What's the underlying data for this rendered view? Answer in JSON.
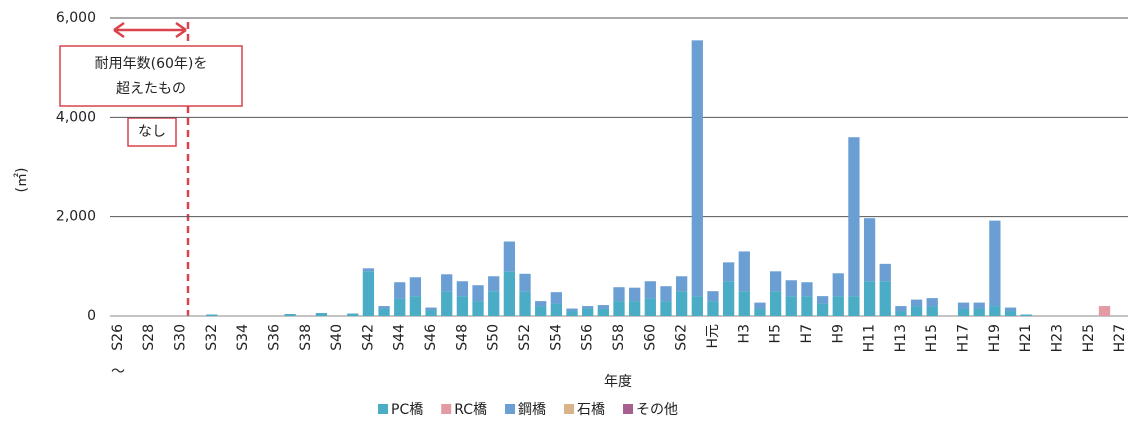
{
  "chart_data": {
    "type": "stacked_bar",
    "y_label": "(㎡)",
    "x_label": "年度",
    "x_note": "〜",
    "annotation": {
      "lines": [
        "耐用年数(60年)を",
        "超えたもの"
      ],
      "note": "なし"
    },
    "categories": [
      "S26",
      null,
      "S28",
      null,
      "S30",
      null,
      "S32",
      null,
      "S34",
      null,
      "S36",
      null,
      "S38",
      null,
      "S40",
      null,
      "S42",
      null,
      "S44",
      null,
      "S46",
      null,
      "S48",
      null,
      "S50",
      null,
      "S52",
      null,
      "S54",
      null,
      "S56",
      null,
      "S58",
      null,
      "S60",
      null,
      "S62",
      null,
      "H元",
      null,
      "H3",
      null,
      "H5",
      null,
      "H7",
      null,
      "H9",
      null,
      "H11",
      null,
      "H13",
      null,
      "H15",
      null,
      "H17",
      null,
      "H19",
      null,
      "H21",
      null,
      "H23",
      null,
      "H25",
      null,
      "H27"
    ],
    "series": [
      {
        "name": "PC橋",
        "color": "#4bacc6",
        "values": [
          0,
          0,
          0,
          0,
          0,
          0,
          30,
          0,
          0,
          0,
          0,
          40,
          0,
          60,
          0,
          50,
          900,
          150,
          350,
          400,
          120,
          500,
          400,
          300,
          500,
          900,
          500,
          200,
          250,
          100,
          150,
          150,
          300,
          300,
          350,
          300,
          500,
          400,
          300,
          700,
          500,
          150,
          500,
          400,
          400,
          250,
          400,
          400,
          700,
          700,
          100,
          200,
          200,
          0,
          150,
          150,
          200,
          100,
          30,
          0,
          0,
          0,
          0,
          0,
          0
        ]
      },
      {
        "name": "RC橋",
        "color": "#e39aa3",
        "values": [
          0,
          0,
          0,
          0,
          0,
          0,
          0,
          0,
          0,
          0,
          0,
          0,
          0,
          0,
          0,
          0,
          0,
          0,
          0,
          0,
          0,
          0,
          0,
          0,
          0,
          0,
          0,
          0,
          0,
          0,
          0,
          0,
          0,
          0,
          0,
          0,
          0,
          0,
          0,
          0,
          0,
          0,
          0,
          0,
          0,
          0,
          0,
          0,
          0,
          0,
          0,
          0,
          0,
          0,
          0,
          0,
          0,
          0,
          0,
          0,
          0,
          0,
          0,
          200,
          0
        ]
      },
      {
        "name": "鋼橋",
        "color": "#6b9fd3",
        "values": [
          0,
          0,
          0,
          0,
          0,
          0,
          0,
          0,
          0,
          0,
          0,
          0,
          0,
          0,
          0,
          0,
          60,
          50,
          330,
          380,
          50,
          340,
          300,
          320,
          300,
          600,
          350,
          100,
          230,
          50,
          50,
          70,
          280,
          270,
          350,
          300,
          300,
          5150,
          200,
          380,
          800,
          120,
          400,
          320,
          280,
          150,
          460,
          3200,
          1270,
          350,
          100,
          130,
          160,
          0,
          120,
          120,
          1720,
          70,
          0,
          0,
          0,
          0,
          0,
          0,
          0
        ]
      },
      {
        "name": "石橋",
        "color": "#d9b48a",
        "values": [
          0,
          0,
          0,
          0,
          0,
          0,
          0,
          0,
          0,
          0,
          0,
          0,
          0,
          0,
          0,
          0,
          0,
          0,
          0,
          0,
          0,
          0,
          0,
          0,
          0,
          0,
          0,
          0,
          0,
          0,
          0,
          0,
          0,
          0,
          0,
          0,
          0,
          0,
          0,
          0,
          0,
          0,
          0,
          0,
          0,
          0,
          0,
          0,
          0,
          0,
          0,
          0,
          0,
          0,
          0,
          0,
          0,
          0,
          0,
          0,
          0,
          0,
          0,
          0,
          0
        ]
      },
      {
        "name": "その他",
        "color": "#a65f8e",
        "values": [
          0,
          0,
          0,
          0,
          0,
          0,
          0,
          0,
          0,
          0,
          0,
          0,
          0,
          0,
          0,
          0,
          0,
          0,
          0,
          0,
          0,
          0,
          0,
          0,
          0,
          0,
          0,
          0,
          0,
          0,
          0,
          0,
          0,
          0,
          0,
          0,
          0,
          0,
          0,
          0,
          0,
          0,
          0,
          0,
          0,
          0,
          0,
          0,
          0,
          0,
          0,
          0,
          0,
          0,
          0,
          0,
          0,
          0,
          0,
          0,
          0,
          0,
          0,
          0,
          0
        ]
      }
    ],
    "ylim": [
      0,
      6000
    ],
    "yticks": [
      0,
      {
        "value": 2000,
        "label": "2,000"
      },
      {
        "value": 4000,
        "label": "4,000"
      },
      {
        "value": 6000,
        "label": "6,000"
      }
    ],
    "grid": true
  }
}
